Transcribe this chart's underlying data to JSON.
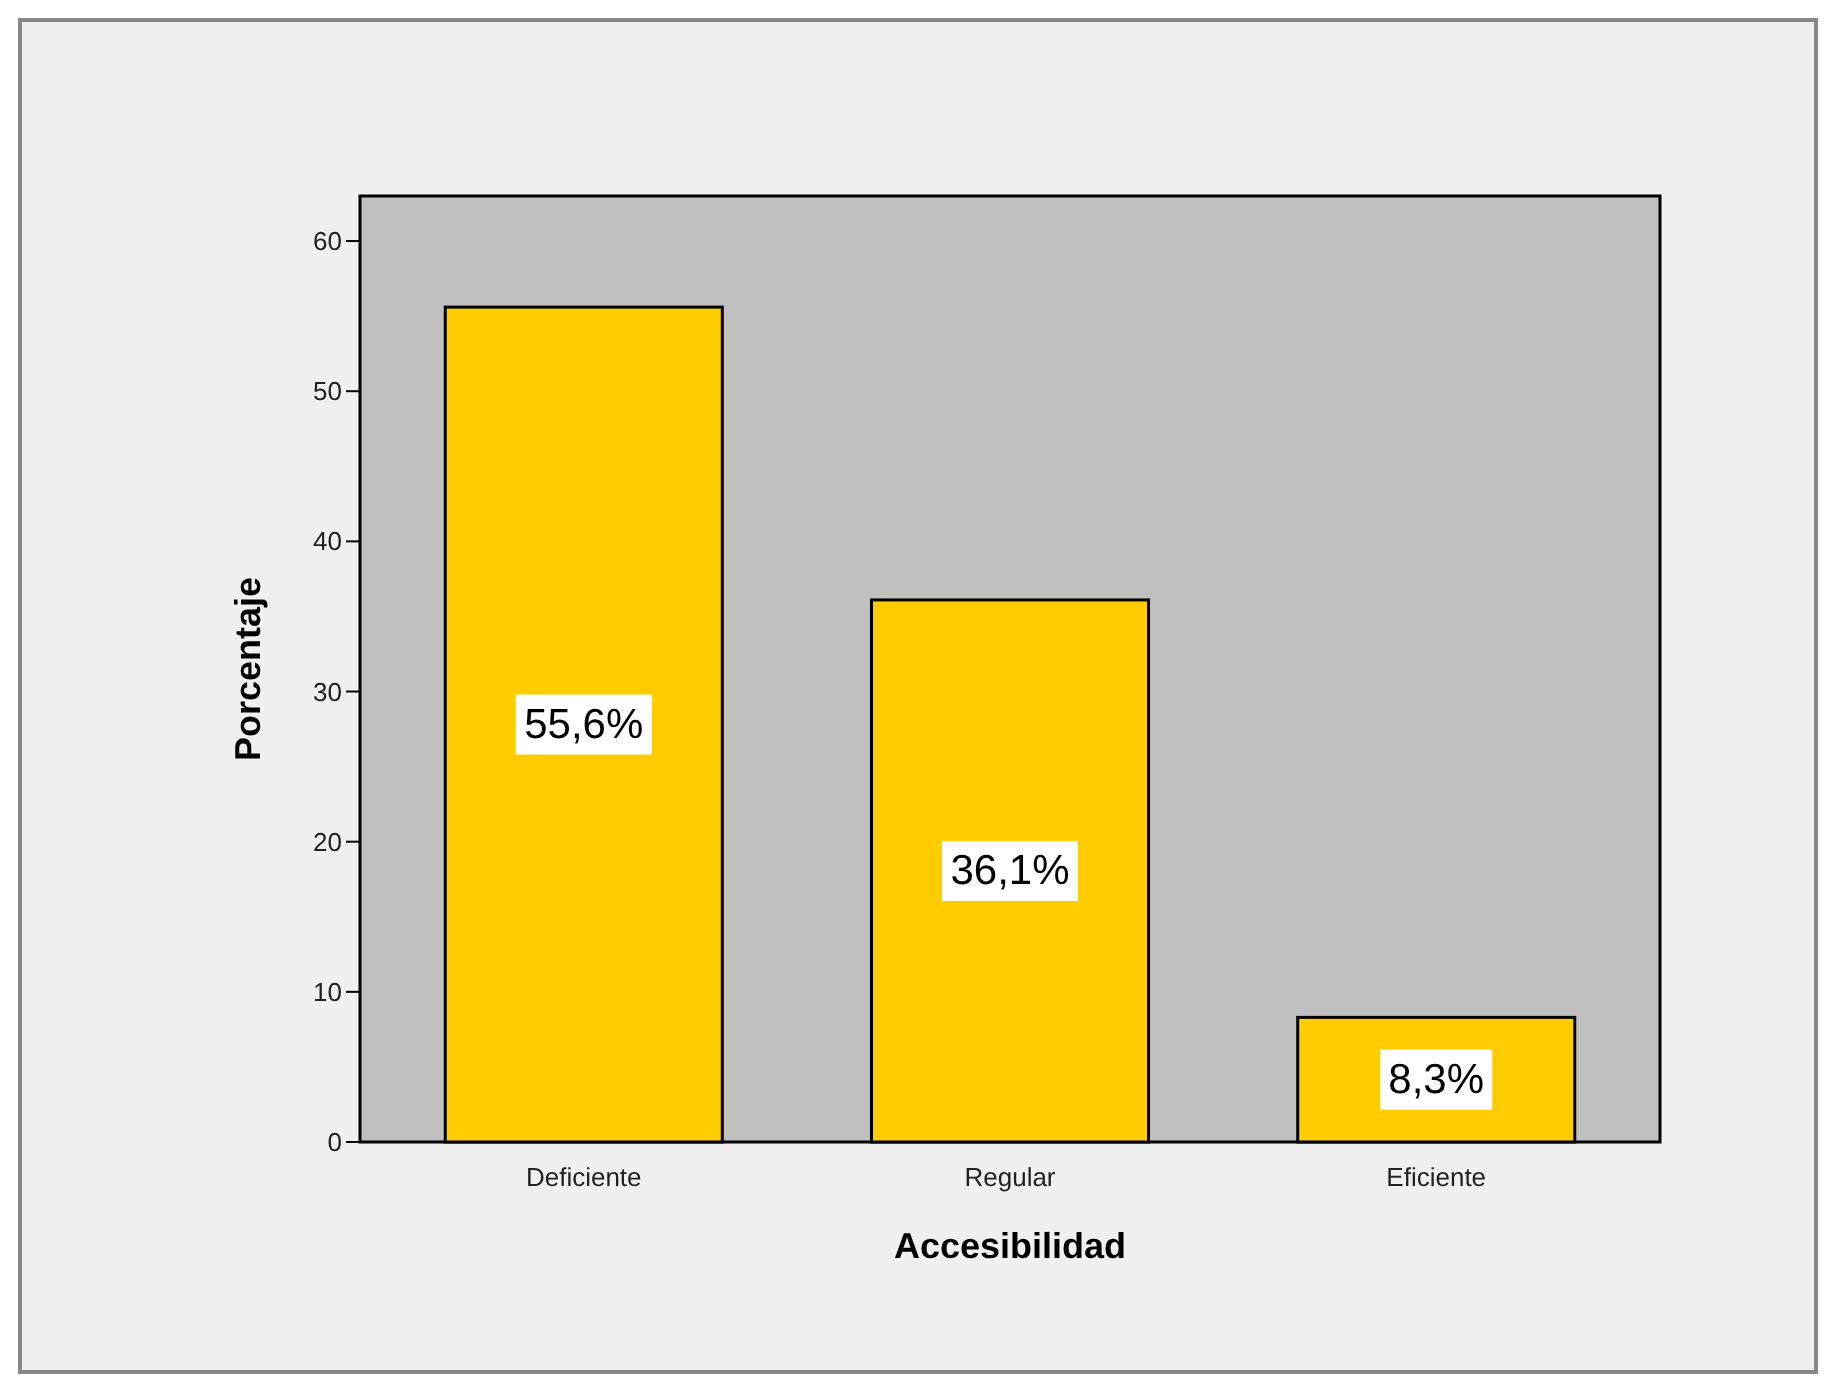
{
  "chart_data": {
    "type": "bar",
    "xlabel": "Accesibilidad",
    "ylabel": "Porcentaje",
    "categories": [
      "Deficiente",
      "Regular",
      "Eficiente"
    ],
    "values": [
      55.6,
      36.1,
      8.3
    ],
    "value_labels": [
      "55,6%",
      "36,1%",
      "8,3%"
    ],
    "color": "#ffcc00",
    "ylim": [
      0,
      63
    ],
    "yticks": [
      0,
      10,
      20,
      30,
      40,
      50,
      60
    ],
    "grid": false
  }
}
